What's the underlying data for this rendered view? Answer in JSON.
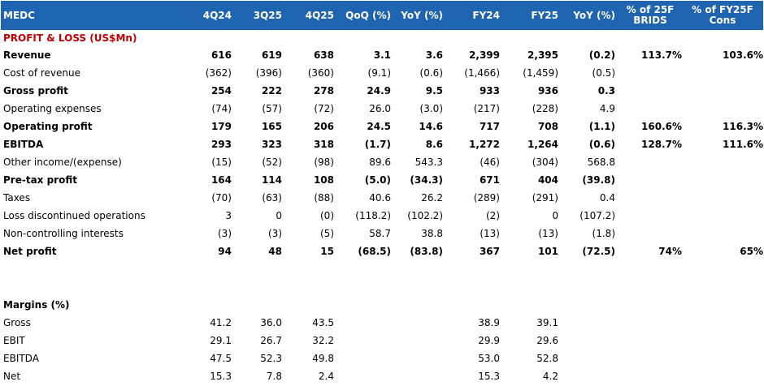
{
  "ticker": "MEDC",
  "columns": [
    "4Q24",
    "3Q25",
    "4Q25",
    "QoQ (%)",
    "YoY (%)",
    "FY24",
    "FY25",
    "YoY (%)",
    "% of 25F BRIDS",
    "% of FY25F Cons"
  ],
  "section_title": "PROFIT & LOSS (US$Mn)",
  "rows": [
    {
      "label": "Revenue",
      "bold": true,
      "values": [
        "616",
        "619",
        "638",
        "3.1",
        "3.6",
        "2,399",
        "2,395",
        "(0.2)",
        "113.7%",
        "103.6%"
      ]
    },
    {
      "label": "Cost of revenue",
      "bold": false,
      "values": [
        "(362)",
        "(396)",
        "(360)",
        "(9.1)",
        "(0.6)",
        "(1,466)",
        "(1,459)",
        "(0.5)",
        "",
        ""
      ]
    },
    {
      "label": "Gross profit",
      "bold": true,
      "values": [
        "254",
        "222",
        "278",
        "24.9",
        "9.5",
        "933",
        "936",
        "0.3",
        "",
        ""
      ]
    },
    {
      "label": "Operating expenses",
      "bold": false,
      "values": [
        "(74)",
        "(57)",
        "(72)",
        "26.0",
        "(3.0)",
        "(217)",
        "(228)",
        "4.9",
        "",
        ""
      ]
    },
    {
      "label": "Operating profit",
      "bold": true,
      "values": [
        "179",
        "165",
        "206",
        "24.5",
        "14.6",
        "717",
        "708",
        "(1.1)",
        "160.6%",
        "116.3%"
      ]
    },
    {
      "label": "EBITDA",
      "bold": true,
      "values": [
        "293",
        "323",
        "318",
        "(1.7)",
        "8.6",
        "1,272",
        "1,264",
        "(0.6)",
        "128.7%",
        "111.6%"
      ]
    },
    {
      "label": "Other income/(expense)",
      "bold": false,
      "values": [
        "(15)",
        "(52)",
        "(98)",
        "89.6",
        "543.3",
        "(46)",
        "(304)",
        "568.8",
        "",
        ""
      ]
    },
    {
      "label": "Pre-tax profit",
      "bold": true,
      "values": [
        "164",
        "114",
        "108",
        "(5.0)",
        "(34.3)",
        "671",
        "404",
        "(39.8)",
        "",
        ""
      ]
    },
    {
      "label": "Taxes",
      "bold": false,
      "values": [
        "(70)",
        "(63)",
        "(88)",
        "40.6",
        "26.2",
        "(289)",
        "(291)",
        "0.4",
        "",
        ""
      ]
    },
    {
      "label": "Loss discontinued operations",
      "bold": false,
      "values": [
        "3",
        "0",
        "(0)",
        "(118.2)",
        "(102.2)",
        "(2)",
        "0",
        "(107.2)",
        "",
        ""
      ]
    },
    {
      "label": "Non-controlling interests",
      "bold": false,
      "values": [
        "(3)",
        "(3)",
        "(5)",
        "58.7",
        "38.8",
        "(13)",
        "(13)",
        "(1.8)",
        "",
        ""
      ]
    },
    {
      "label": "Net profit",
      "bold": true,
      "values": [
        "94",
        "48",
        "15",
        "(68.5)",
        "(83.8)",
        "367",
        "101",
        "(72.5)",
        "74%",
        "65%"
      ]
    }
  ],
  "margins_title": "Margins (%)",
  "margins": [
    {
      "label": "Gross",
      "values": [
        "41.2",
        "36.0",
        "43.5",
        "",
        "",
        "38.9",
        "39.1",
        "",
        "",
        ""
      ]
    },
    {
      "label": "EBIT",
      "values": [
        "29.1",
        "26.7",
        "32.2",
        "",
        "",
        "29.9",
        "29.6",
        "",
        "",
        ""
      ]
    },
    {
      "label": "EBITDA",
      "values": [
        "47.5",
        "52.3",
        "49.8",
        "",
        "",
        "53.0",
        "52.8",
        "",
        "",
        ""
      ]
    },
    {
      "label": "Net",
      "values": [
        "15.3",
        "7.8",
        "2.4",
        "",
        "",
        "15.3",
        "4.2",
        "",
        "",
        ""
      ]
    }
  ]
}
